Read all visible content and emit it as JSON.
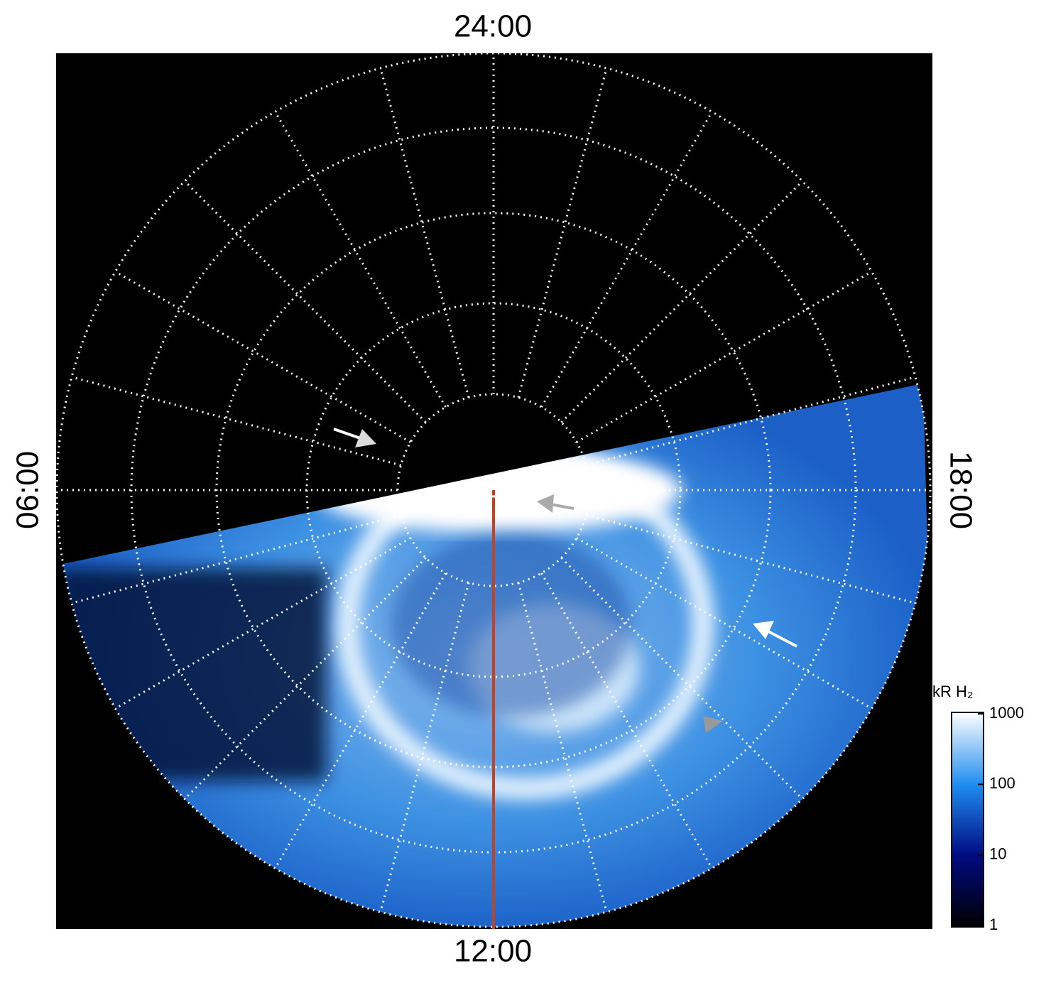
{
  "chart_data": {
    "type": "polar-image",
    "time_labels": {
      "top": "24:00",
      "bottom": "12:00",
      "left": "06:00",
      "right": "18:00"
    },
    "colorbar": {
      "title": "kR H₂",
      "lim": [
        1,
        1000
      ],
      "ticks": [
        1,
        10,
        100,
        1000
      ],
      "log_scale": true
    }
  }
}
